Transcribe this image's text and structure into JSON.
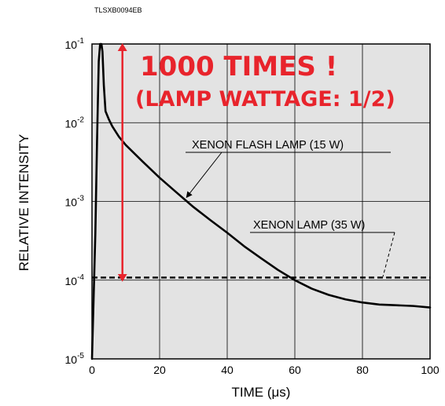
{
  "chart_data": {
    "type": "line",
    "doc_code": "TLSXB0094EB",
    "xlabel": "TIME (μs)",
    "ylabel": "RELATIVE INTENSITY",
    "xlim": [
      0,
      100
    ],
    "ylim": [
      1e-05,
      0.1
    ],
    "y_scale": "log",
    "grid": true,
    "x_ticks": [
      "0",
      "20",
      "40",
      "60",
      "80",
      "100"
    ],
    "y_ticks": [
      {
        "base": "10",
        "exp": "-1",
        "value": 0.1
      },
      {
        "base": "10",
        "exp": "-2",
        "value": 0.01
      },
      {
        "base": "10",
        "exp": "-3",
        "value": 0.001
      },
      {
        "base": "10",
        "exp": "-4",
        "value": 0.0001
      },
      {
        "base": "10",
        "exp": "-5",
        "value": 1e-05
      }
    ],
    "series": [
      {
        "name": "XENON FLASH LAMP (15 W)",
        "style": "solid",
        "color": "#000000",
        "x": [
          0,
          1,
          1.5,
          2,
          2.4,
          2.8,
          3.1,
          3.5,
          4,
          5,
          6,
          8,
          10,
          15,
          20,
          25,
          30,
          35,
          40,
          45,
          50,
          55,
          60,
          65,
          70,
          75,
          80,
          85,
          90,
          95,
          100
        ],
        "y": [
          1e-05,
          0.0004,
          0.006,
          0.06,
          0.1,
          0.1,
          0.08,
          0.03,
          0.014,
          0.011,
          0.009,
          0.0066,
          0.0052,
          0.0032,
          0.002,
          0.0013,
          0.00085,
          0.00058,
          0.0004,
          0.00027,
          0.00019,
          0.000135,
          0.0001,
          7.8e-05,
          6.5e-05,
          5.7e-05,
          5.2e-05,
          4.9e-05,
          4.8e-05,
          4.7e-05,
          4.5e-05
        ]
      },
      {
        "name": "XENON LAMP (35 W)",
        "style": "dashed",
        "color": "#000000",
        "x": [
          0,
          100
        ],
        "y": [
          0.000108,
          0.000108
        ]
      }
    ],
    "annotations": [
      {
        "text": "1000 TIMES !",
        "color": "#e8242c"
      },
      {
        "text": "(LAMP WATTAGE: 1/2)",
        "color": "#e8242c"
      }
    ],
    "arrow": {
      "x": 9,
      "y_from": 0.1,
      "y_to": 0.0001,
      "color": "#e8242c"
    }
  }
}
